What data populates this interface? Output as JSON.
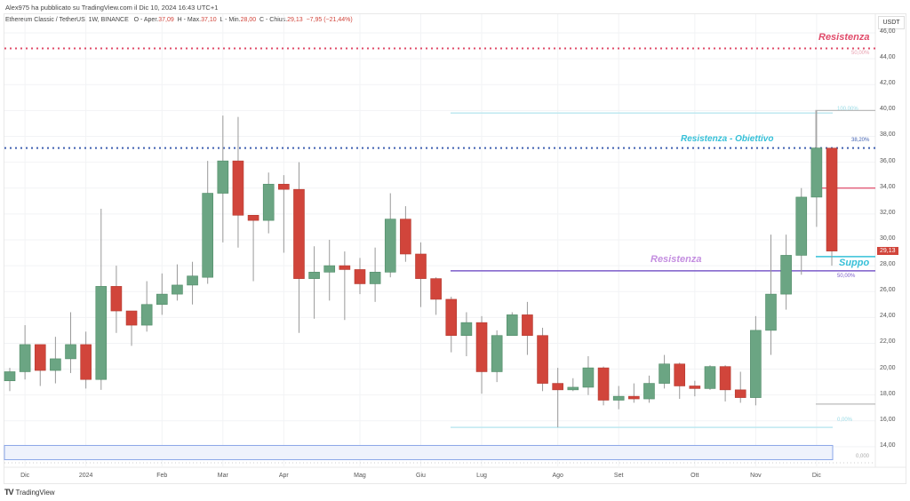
{
  "header": {
    "publisher": "Alex975 ha pubblicato su TradingView.com il Dic 10, 2024 16:43 UTC+1",
    "symbol": "Ethereum Classic / TetherUS, 1W, BINANCE",
    "open_label": "O - Aper.",
    "open": "37,09",
    "high_label": "H - Max.",
    "high": "37,10",
    "low_label": "L - Min.",
    "low": "28,00",
    "close_label": "C - Chius.",
    "close": "29,13",
    "change": "−7,95 (−21,44%)"
  },
  "price_axis": {
    "currency": "USDT",
    "last_price": "29,13"
  },
  "footer": {
    "brand": "TradingView"
  },
  "colors": {
    "up": "#6ba583",
    "down": "#d1453b",
    "red_line": "#e04b6a",
    "blue_line": "#3f5fb0",
    "cyan": "#35c0d8",
    "purple": "#7b5cc9"
  },
  "annotations": {
    "top_resistance": "Resistenza",
    "top_pct": "50,00%",
    "target_resistance": "Resistenza - Obiettivo",
    "target_pct": "38,20%",
    "fib_top_pct": "100,00%",
    "mid_resistance": "Resistenza",
    "mid_pct": "50,00%",
    "support": "Suppo",
    "fib_bottom_pct": "0,00%",
    "box_pct": "0,000"
  },
  "chart_data": {
    "type": "candlestick",
    "title": "Ethereum Classic / TetherUS, 1W, BINANCE",
    "ylabel": "USDT",
    "ylim": [
      13,
      47
    ],
    "yticks": [
      "14,00",
      "16,00",
      "18,00",
      "20,00",
      "22,00",
      "24,00",
      "26,00",
      "28,00",
      "30,00",
      "32,00",
      "34,00",
      "36,00",
      "38,00",
      "40,00",
      "42,00",
      "44,00",
      "46,00"
    ],
    "ytick_values": [
      14,
      16,
      18,
      20,
      22,
      24,
      26,
      28,
      30,
      32,
      34,
      36,
      38,
      40,
      42,
      44,
      46
    ],
    "xticks": [
      {
        "label": "Dic",
        "index": 1
      },
      {
        "label": "2024",
        "index": 5
      },
      {
        "label": "Feb",
        "index": 10
      },
      {
        "label": "Mar",
        "index": 14
      },
      {
        "label": "Apr",
        "index": 18
      },
      {
        "label": "Mag",
        "index": 23
      },
      {
        "label": "Giu",
        "index": 27
      },
      {
        "label": "Lug",
        "index": 31
      },
      {
        "label": "Ago",
        "index": 36
      },
      {
        "label": "Set",
        "index": 40
      },
      {
        "label": "Ott",
        "index": 45
      },
      {
        "label": "Nov",
        "index": 49
      },
      {
        "label": "Dic",
        "index": 53
      }
    ],
    "ohlc": [
      [
        19.1,
        19.8,
        20.1,
        18.3
      ],
      [
        19.8,
        21.9,
        23.4,
        19.2
      ],
      [
        21.9,
        19.9,
        21.9,
        18.7
      ],
      [
        19.9,
        20.8,
        22.5,
        18.9
      ],
      [
        20.8,
        21.9,
        24.4,
        19.7
      ],
      [
        21.9,
        19.2,
        22.9,
        18.5
      ],
      [
        19.2,
        26.4,
        32.4,
        18.4
      ],
      [
        26.4,
        24.5,
        28.0,
        22.8
      ],
      [
        24.5,
        23.4,
        24.5,
        21.8
      ],
      [
        23.4,
        25.0,
        26.8,
        22.9
      ],
      [
        25.0,
        25.8,
        27.4,
        24.2
      ],
      [
        25.8,
        26.5,
        28.1,
        25.3
      ],
      [
        26.5,
        27.2,
        28.3,
        25.0
      ],
      [
        27.1,
        33.6,
        36.1,
        26.6
      ],
      [
        33.6,
        36.1,
        39.6,
        29.8
      ],
      [
        36.1,
        31.9,
        39.5,
        29.4
      ],
      [
        31.9,
        31.5,
        31.9,
        26.8
      ],
      [
        31.5,
        34.3,
        35.2,
        30.5
      ],
      [
        34.3,
        33.9,
        35.0,
        29.0
      ],
      [
        33.9,
        27.0,
        36.0,
        22.8
      ],
      [
        27.0,
        27.5,
        29.5,
        23.9
      ],
      [
        27.5,
        28.0,
        30.0,
        25.3
      ],
      [
        28.0,
        27.7,
        29.1,
        23.8
      ],
      [
        27.7,
        26.6,
        28.6,
        25.8
      ],
      [
        26.6,
        27.5,
        29.4,
        25.2
      ],
      [
        27.5,
        31.6,
        33.6,
        27.1
      ],
      [
        31.6,
        28.9,
        32.6,
        28.3
      ],
      [
        28.9,
        27.0,
        29.8,
        24.8
      ],
      [
        27.0,
        25.4,
        27.1,
        24.2
      ],
      [
        25.4,
        22.6,
        25.6,
        21.3
      ],
      [
        22.6,
        23.6,
        24.4,
        21.0
      ],
      [
        23.6,
        19.8,
        24.1,
        18.1
      ],
      [
        19.8,
        22.6,
        23.0,
        19.0
      ],
      [
        22.6,
        24.2,
        24.4,
        22.6
      ],
      [
        24.2,
        22.6,
        25.2,
        21.1
      ],
      [
        22.6,
        18.9,
        23.2,
        18.3
      ],
      [
        18.9,
        18.4,
        20.1,
        15.5
      ],
      [
        18.4,
        18.6,
        19.3,
        18.3
      ],
      [
        18.6,
        20.1,
        21.0,
        18.0
      ],
      [
        20.1,
        17.6,
        20.2,
        17.2
      ],
      [
        17.6,
        17.9,
        18.7,
        16.9
      ],
      [
        17.9,
        17.7,
        18.9,
        17.4
      ],
      [
        17.7,
        18.9,
        19.5,
        17.4
      ],
      [
        18.9,
        20.4,
        21.1,
        18.5
      ],
      [
        20.4,
        18.7,
        20.5,
        17.7
      ],
      [
        18.7,
        18.5,
        19.1,
        17.9
      ],
      [
        18.5,
        20.2,
        20.3,
        18.4
      ],
      [
        20.2,
        18.4,
        20.3,
        17.5
      ],
      [
        18.4,
        17.8,
        19.8,
        17.4
      ],
      [
        17.8,
        23.0,
        24.1,
        17.2
      ],
      [
        23.0,
        25.8,
        30.4,
        21.1
      ],
      [
        25.8,
        28.8,
        30.4,
        24.6
      ],
      [
        28.8,
        33.3,
        34.0,
        27.3
      ],
      [
        33.3,
        37.1,
        40.0,
        31.0
      ],
      [
        37.09,
        29.13,
        37.1,
        28.0
      ]
    ],
    "levels": {
      "top_resistance": 44.8,
      "target_resistance": 37.1,
      "fib_100": 39.8,
      "mid_resistance": 27.6,
      "support": 28.7,
      "fib_0": 15.5,
      "gray_top": 40.0,
      "gray_bottom": 17.3,
      "box_top": 14.1,
      "box_bottom": 13.0
    }
  }
}
